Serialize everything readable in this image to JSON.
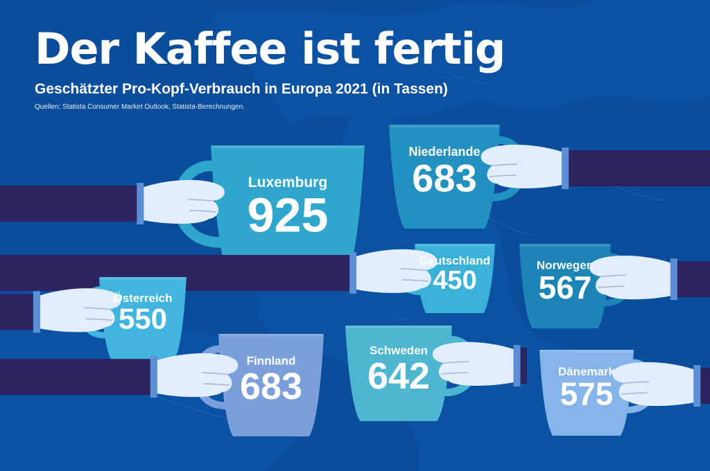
{
  "header": {
    "title": "Der Kaffee ist fertig",
    "subtitle": "Geschätzter Pro-Kopf-Verbrauch in Europa 2021 (in Tassen)",
    "source": "Quellen; Statista Consumer Market Outlook, Statista-Berechnungen."
  },
  "colors": {
    "background": "#0a4d9c",
    "sleeve": "#2c235f",
    "hand": "#e3eefc",
    "text": "#ffffff"
  },
  "chart_data": {
    "type": "bar",
    "title": "Der Kaffee ist fertig",
    "subtitle": "Geschätzter Pro-Kopf-Verbrauch in Europa 2021 (in Tassen)",
    "categories": [
      "Luxemburg",
      "Niederlande",
      "Deutschland",
      "Norwegen",
      "Österreich",
      "Finnland",
      "Schweden",
      "Dänemark"
    ],
    "values": [
      925,
      683,
      450,
      567,
      550,
      683,
      642,
      575
    ],
    "cup_colors": [
      "#2fa6cb",
      "#2391c0",
      "#3ab1d9",
      "#1d85b5",
      "#42b4e0",
      "#7b9fdb",
      "#4eb6d1",
      "#84b4e8"
    ]
  }
}
